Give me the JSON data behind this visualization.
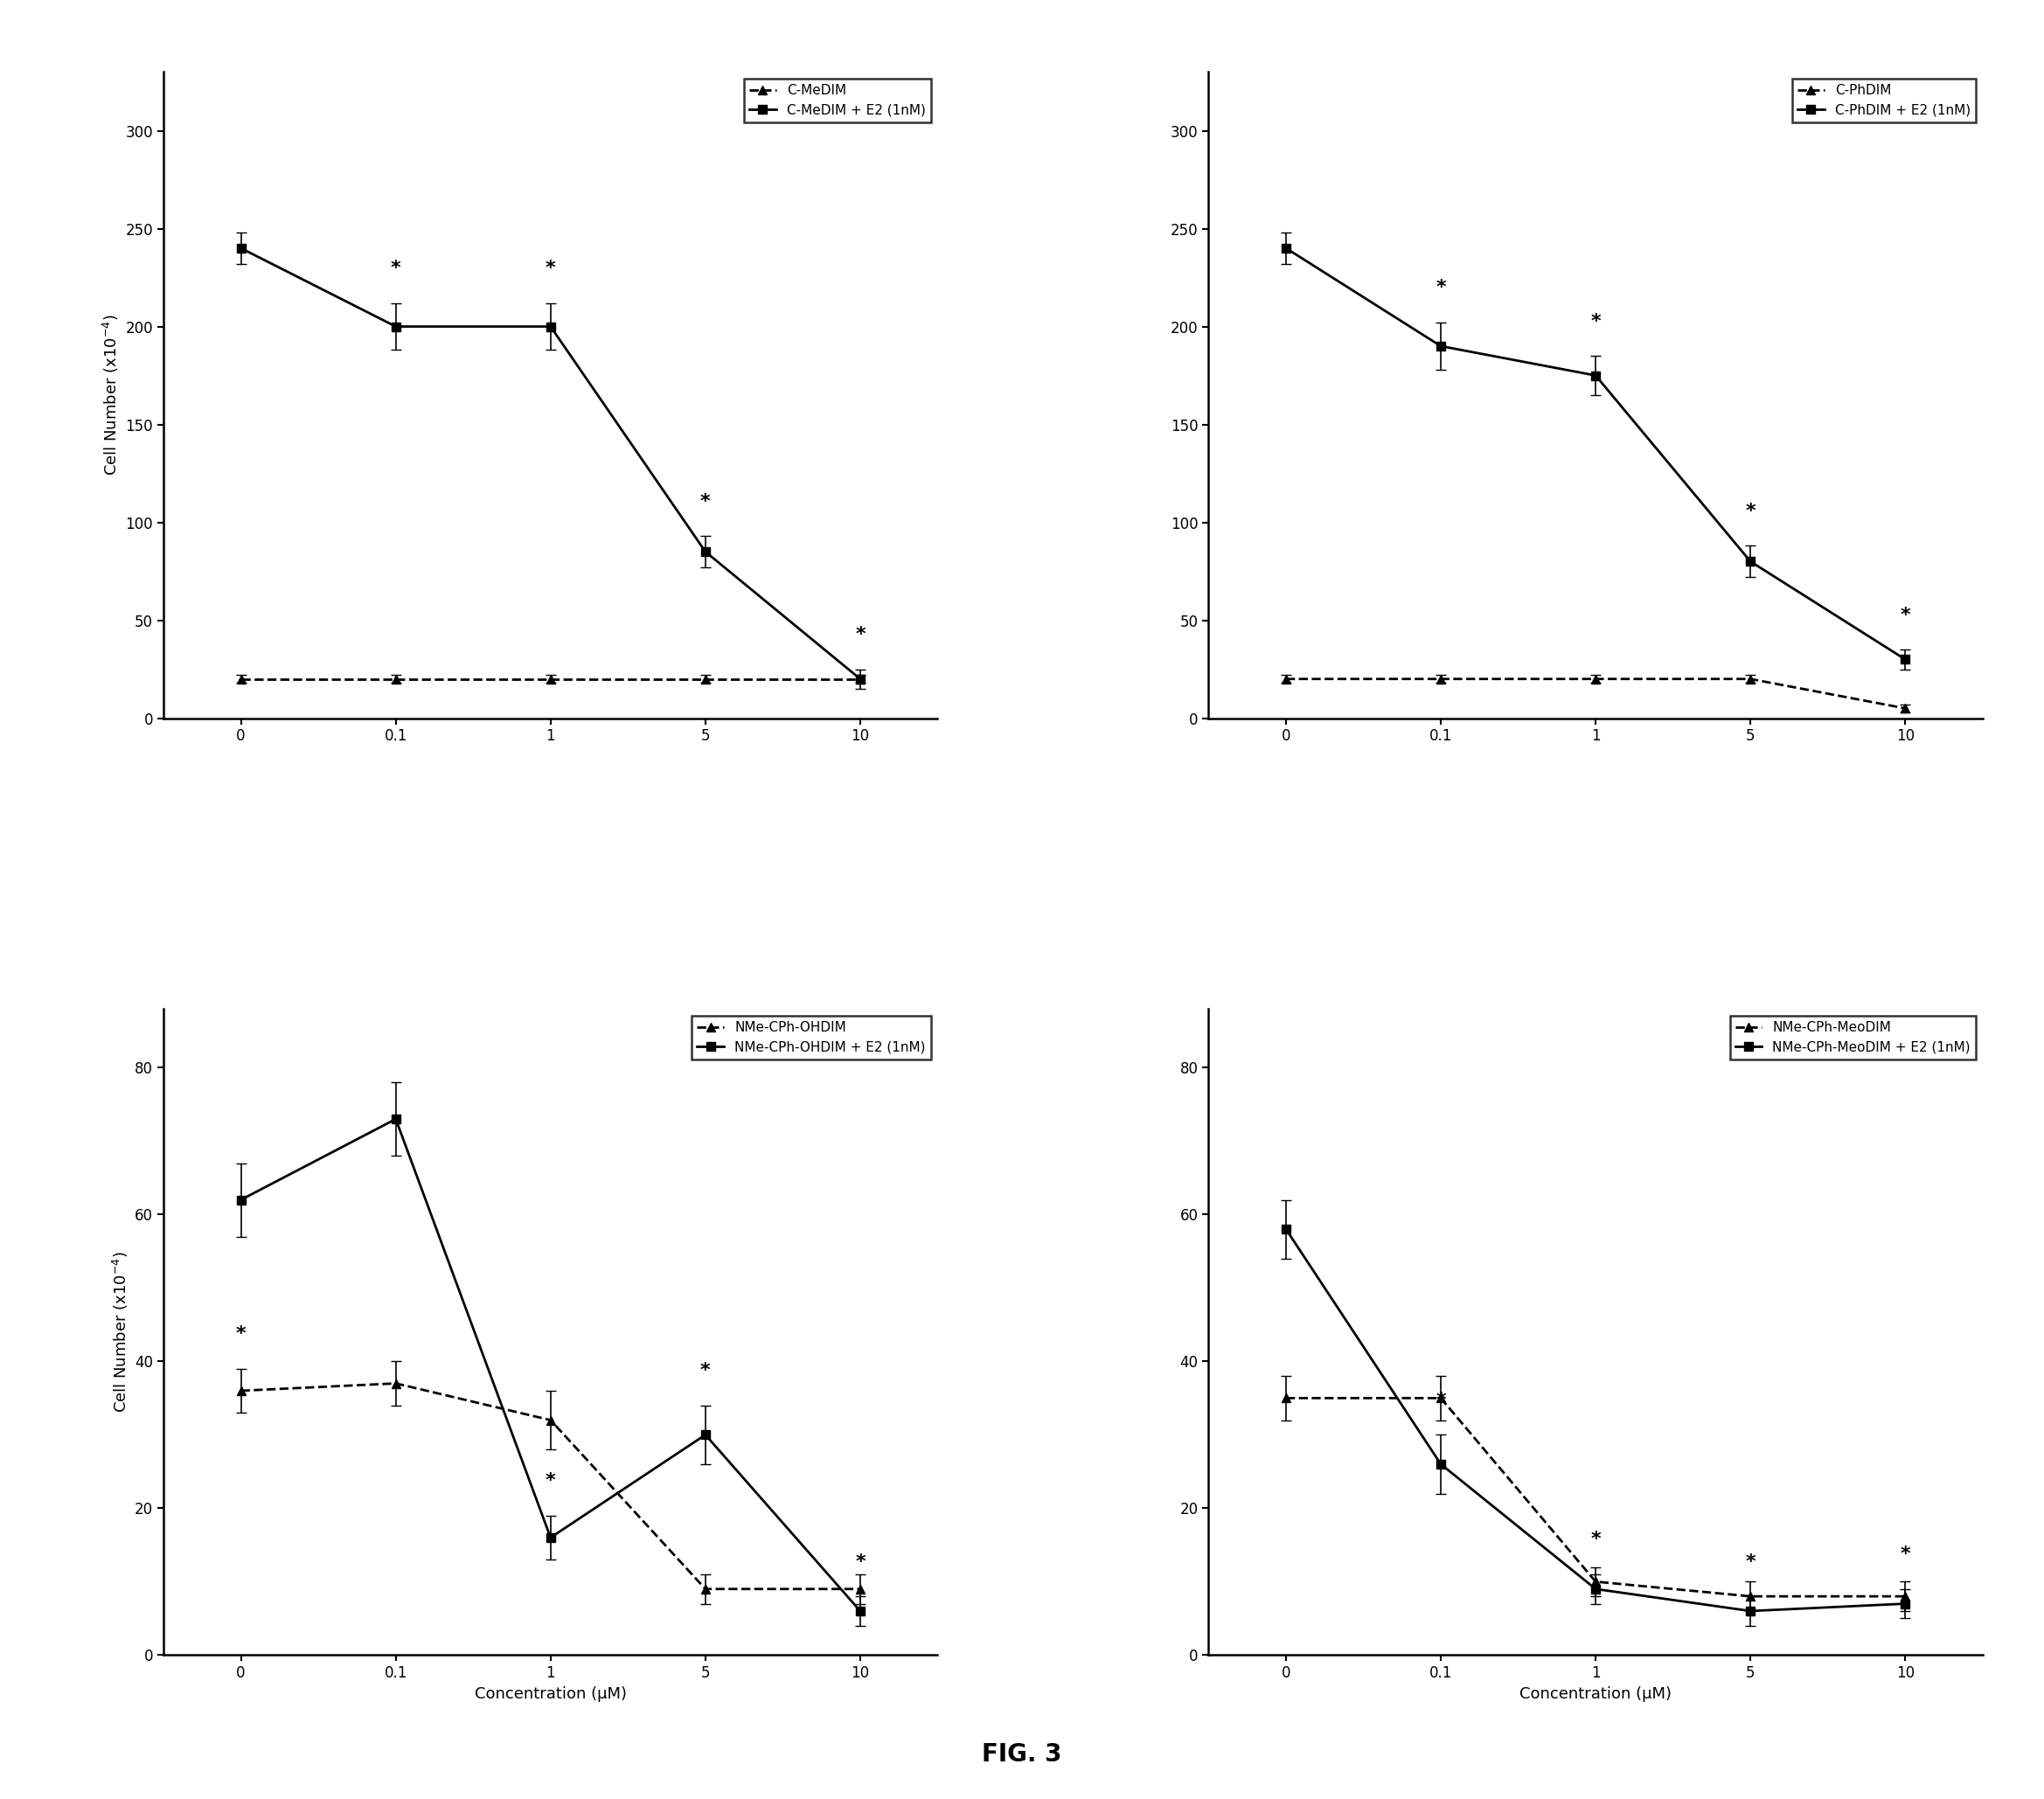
{
  "x_positions": [
    0,
    1,
    2,
    3,
    4
  ],
  "x_tick_labels": [
    "0",
    "0.1",
    "1",
    "5",
    "10"
  ],
  "panel_TL": {
    "legend1": "C-MeDIM",
    "legend2": "C-MeDIM + E2 (1nM)",
    "dashed_y": [
      20,
      20,
      20,
      20,
      20
    ],
    "dashed_yerr": [
      2,
      2,
      2,
      2,
      2
    ],
    "solid_y": [
      240,
      200,
      200,
      85,
      20
    ],
    "solid_yerr": [
      8,
      12,
      12,
      8,
      5
    ],
    "star_dashed_idx": [],
    "star_solid_idx": [
      1,
      2,
      3,
      4
    ],
    "ylim": [
      0,
      330
    ],
    "yticks": [
      0,
      50,
      100,
      150,
      200,
      250,
      300
    ]
  },
  "panel_TR": {
    "legend1": "C-PhDIM",
    "legend2": "C-PhDIM + E2 (1nM)",
    "dashed_y": [
      20,
      20,
      20,
      20,
      5
    ],
    "dashed_yerr": [
      2,
      2,
      2,
      2,
      2
    ],
    "solid_y": [
      240,
      190,
      175,
      80,
      30
    ],
    "solid_yerr": [
      8,
      12,
      10,
      8,
      5
    ],
    "star_dashed_idx": [],
    "star_solid_idx": [
      1,
      2,
      3,
      4
    ],
    "ylim": [
      0,
      330
    ],
    "yticks": [
      0,
      50,
      100,
      150,
      200,
      250,
      300
    ]
  },
  "panel_BL": {
    "legend1": "NMe-CPh-OHDIM",
    "legend2": "NMe-CPh-OHDIM + E2 (1nM)",
    "dashed_y": [
      36,
      37,
      32,
      9,
      9
    ],
    "dashed_yerr": [
      3,
      3,
      4,
      2,
      2
    ],
    "solid_y": [
      62,
      73,
      16,
      30,
      6
    ],
    "solid_yerr": [
      5,
      5,
      3,
      4,
      2
    ],
    "star_dashed_idx": [
      0
    ],
    "star_solid_idx": [
      2,
      3,
      4
    ],
    "ylim": [
      0,
      88
    ],
    "yticks": [
      0,
      20,
      40,
      60,
      80
    ]
  },
  "panel_BR": {
    "legend1": "NMe-CPh-MeoDIM",
    "legend2": "NMe-CPh-MeoDIM + E2 (1nM)",
    "dashed_y": [
      35,
      35,
      10,
      8,
      8
    ],
    "dashed_yerr": [
      3,
      3,
      2,
      2,
      2
    ],
    "solid_y": [
      58,
      26,
      9,
      6,
      7
    ],
    "solid_yerr": [
      4,
      4,
      2,
      2,
      2
    ],
    "star_dashed_idx": [],
    "star_solid_idx": [
      1,
      2,
      3,
      4
    ],
    "ylim": [
      0,
      88
    ],
    "yticks": [
      0,
      20,
      40,
      60,
      80
    ]
  },
  "ylabel": "Cell Number (x10$^{-4}$)",
  "xlabel": "Concentration (μM)",
  "fig_label": "FIG. 3",
  "fontsize_axis": 13,
  "fontsize_legend": 11,
  "fontsize_tick": 12,
  "fontsize_star": 16,
  "linewidth": 2.0,
  "markersize": 7,
  "capsize": 4
}
